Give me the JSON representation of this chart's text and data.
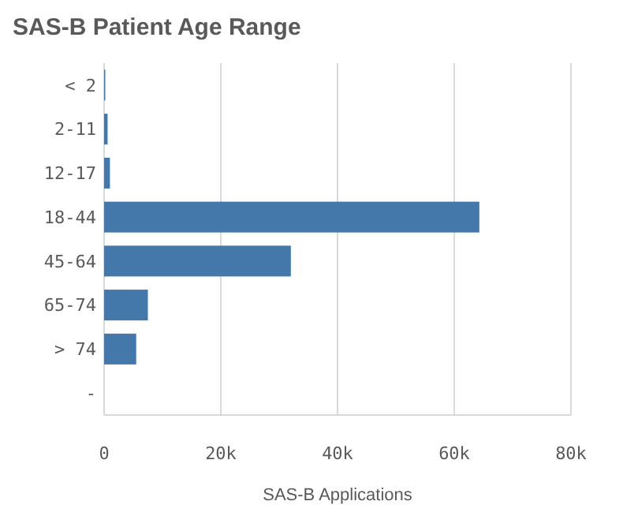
{
  "chart_data": {
    "type": "bar",
    "orientation": "horizontal",
    "title": "SAS-B Patient Age Range",
    "xlabel": "SAS-B Applications",
    "categories": [
      "< 2",
      "2-11",
      "12-17",
      "18-44",
      "45-64",
      "65-74",
      "> 74",
      "-"
    ],
    "values": [
      200,
      600,
      1000,
      64300,
      32000,
      7500,
      5500,
      0
    ],
    "color": "#4477aa",
    "xlim": [
      0,
      80000
    ],
    "xticks": [
      {
        "value": 0,
        "label": "0"
      },
      {
        "value": 20000,
        "label": "20k"
      },
      {
        "value": 40000,
        "label": "40k"
      },
      {
        "value": 60000,
        "label": "60k"
      },
      {
        "value": 80000,
        "label": "80k"
      }
    ],
    "grid": "x"
  }
}
